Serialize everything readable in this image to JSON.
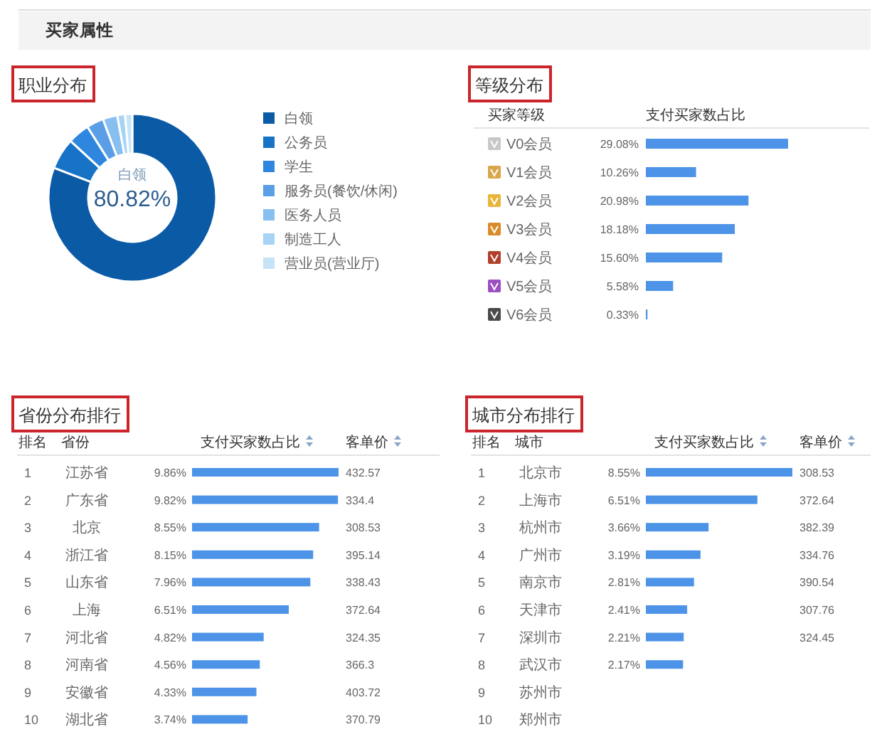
{
  "chart_data": [
    {
      "type": "other",
      "title": "买家属性"
    },
    {
      "type": "donut",
      "title": "职业分布",
      "categories": [
        "白领",
        "公务员",
        "学生",
        "服务员(餐饮/休闲)",
        "医务人员",
        "制造工人",
        "营业员(营业厅)"
      ],
      "values": [
        80.82,
        6.0,
        4.2,
        3.3,
        2.8,
        1.5,
        1.38
      ],
      "colors": [
        "#0b5aa6",
        "#1673c6",
        "#2e86de",
        "#5a9fe6",
        "#86bff0",
        "#a7d4f5",
        "#c6e3f8"
      ],
      "value_labels": [
        "80.82%",
        null,
        null,
        null,
        null,
        null,
        null
      ],
      "legend": "right"
    },
    {
      "type": "bar",
      "orientation": "horizontal",
      "title": "等级分布",
      "ylabel": "买家等级",
      "categories": [
        "V0会员",
        "V1会员",
        "V2会员",
        "V3会员",
        "V4会员",
        "V5会员",
        "V6会员"
      ],
      "series": [
        {
          "name": "支付买家数占比",
          "color": "#4d94e8",
          "values": [
            29.08,
            10.26,
            20.98,
            18.18,
            15.6,
            5.58,
            0.33
          ],
          "value_labels": [
            "29.08%",
            "10.26%",
            "20.98%",
            "18.18%",
            "15.60%",
            "5.58%",
            "0.33%"
          ]
        }
      ]
    },
    {
      "type": "bar",
      "orientation": "horizontal",
      "title": "省份分布排行",
      "ylabel": "省份",
      "y2label": "排名",
      "y2_categories": [
        "1",
        "2",
        "3",
        "4",
        "5",
        "6",
        "7",
        "8",
        "9",
        "10"
      ],
      "categories": [
        "江苏省",
        "广东省",
        "北京",
        "浙江省",
        "山东省",
        "上海",
        "河北省",
        "河南省",
        "安徽省",
        "湖北省"
      ],
      "series": [
        {
          "name": "支付买家数占比",
          "color": "#4d94e8",
          "values": [
            9.86,
            9.82,
            8.55,
            8.15,
            7.96,
            6.51,
            4.82,
            4.56,
            4.33,
            3.74
          ],
          "value_labels": [
            "9.86%",
            "9.82%",
            "8.55%",
            "8.15%",
            "7.96%",
            "6.51%",
            "4.82%",
            "4.56%",
            "4.33%",
            "3.74%"
          ]
        }
      ],
      "annotations": [
        "客单价",
        "432.57",
        "334.4",
        "308.53",
        "395.14",
        "338.43",
        "372.64",
        "324.35",
        "366.3",
        "403.72",
        "370.79"
      ]
    },
    {
      "type": "bar",
      "orientation": "horizontal",
      "title": "城市分布排行",
      "ylabel": "城市",
      "y2label": "排名",
      "y2_categories": [
        "1",
        "2",
        "3",
        "4",
        "5",
        "6",
        "7",
        "8",
        "9",
        "10"
      ],
      "categories": [
        "北京市",
        "上海市",
        "杭州市",
        "广州市",
        "南京市",
        "天津市",
        "深圳市",
        "武汉市",
        "苏州市",
        "郑州市"
      ],
      "series": [
        {
          "name": "支付买家数占比",
          "color": "#4d94e8",
          "values": [
            8.55,
            6.51,
            3.66,
            3.19,
            2.81,
            2.41,
            2.21,
            2.17,
            null,
            null
          ],
          "value_labels": [
            "8.55%",
            "6.51%",
            "3.66%",
            "3.19%",
            "2.81%",
            "2.41%",
            "2.21%",
            "2.17%",
            null,
            null
          ]
        }
      ],
      "annotations": [
        "客单价",
        "308.53",
        "372.64",
        "382.39",
        "334.76",
        "390.54",
        "307.76",
        "324.45"
      ]
    }
  ]
}
